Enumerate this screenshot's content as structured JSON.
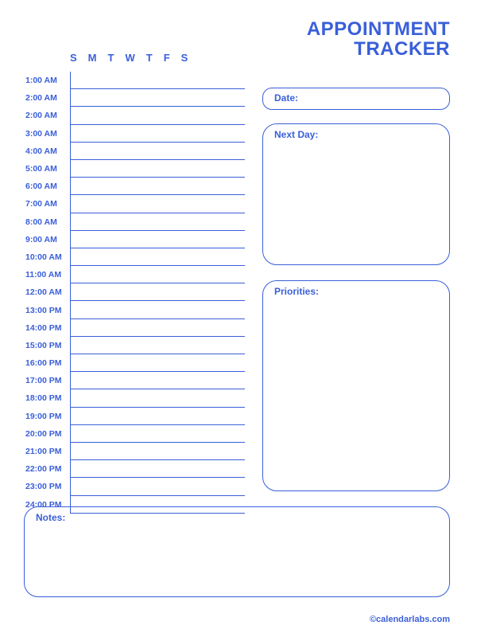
{
  "colors": {
    "primary": "#3a5fd9",
    "line": "#3a5fd9",
    "text": "#3a5fd9",
    "bg": "#ffffff"
  },
  "title": {
    "line1": "APPOINTMENT",
    "line2": "TRACKER",
    "fontsize": 24
  },
  "days": [
    "S",
    "M",
    "T",
    "W",
    "T",
    "F",
    "S"
  ],
  "times": [
    "1:00 AM",
    "2:00 AM",
    "2:00 AM",
    "3:00 AM",
    "4:00 AM",
    "5:00 AM",
    "6:00 AM",
    "7:00 AM",
    "8:00 AM",
    "9:00 AM",
    "10:00 AM",
    "11:00 AM",
    "12:00 AM",
    "13:00 PM",
    "14:00 PM",
    "15:00 PM",
    "16:00 PM",
    "17:00 PM",
    "18:00 PM",
    "19:00 PM",
    "20:00 PM",
    "21:00 PM",
    "22:00 PM",
    "23:00 PM",
    "24:00 PM"
  ],
  "boxes": {
    "date": "Date:",
    "next_day": "Next Day:",
    "priorities": "Priorities:",
    "notes": "Notes:"
  },
  "footer": "©calendarlabs.com"
}
